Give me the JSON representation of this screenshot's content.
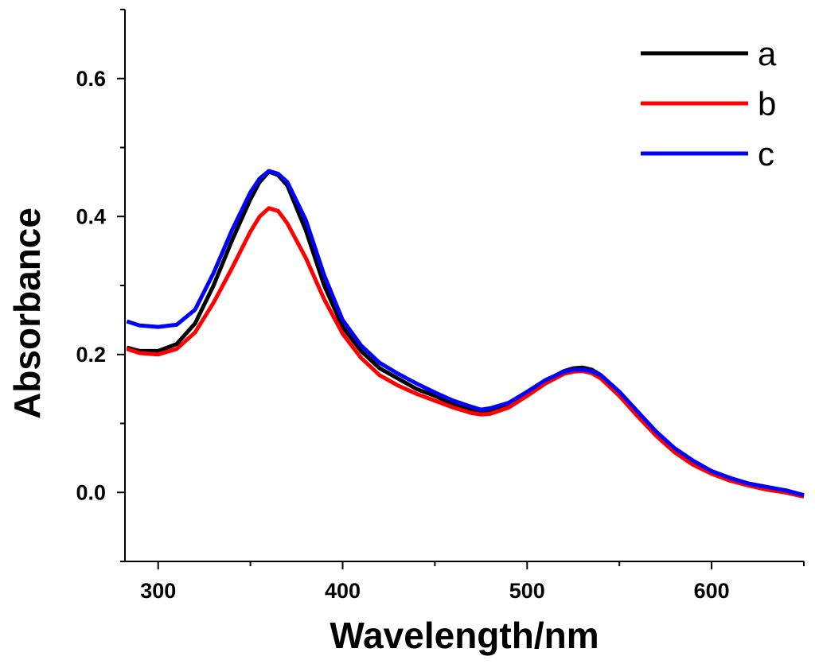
{
  "chart_data": {
    "type": "line",
    "title": "",
    "xlabel": "Wavelength/nm",
    "ylabel": "Absorbance",
    "xlim": [
      282,
      650
    ],
    "ylim": [
      -0.1,
      0.7
    ],
    "xticks": [
      300,
      400,
      500,
      600
    ],
    "xtick_labels": [
      "300",
      "400",
      "500",
      "600"
    ],
    "yticks": [
      0.0,
      0.2,
      0.4,
      0.6
    ],
    "ytick_labels": [
      "0.0",
      "0.2",
      "0.4",
      "0.6"
    ],
    "grid": false,
    "legend_position": "top-right",
    "x": [
      283,
      290,
      300,
      310,
      320,
      330,
      340,
      350,
      355,
      360,
      365,
      370,
      380,
      390,
      400,
      410,
      420,
      430,
      440,
      450,
      460,
      470,
      475,
      480,
      490,
      500,
      510,
      520,
      525,
      530,
      535,
      540,
      550,
      560,
      570,
      580,
      590,
      600,
      610,
      620,
      630,
      640,
      650
    ],
    "series": [
      {
        "name": "a",
        "color": "#000000",
        "values": [
          0.21,
          0.205,
          0.205,
          0.215,
          0.245,
          0.3,
          0.365,
          0.425,
          0.45,
          0.465,
          0.46,
          0.445,
          0.38,
          0.3,
          0.24,
          0.205,
          0.18,
          0.165,
          0.15,
          0.14,
          0.128,
          0.12,
          0.118,
          0.119,
          0.128,
          0.145,
          0.162,
          0.176,
          0.18,
          0.181,
          0.178,
          0.17,
          0.145,
          0.115,
          0.085,
          0.062,
          0.045,
          0.03,
          0.02,
          0.012,
          0.007,
          0.003,
          -0.004
        ]
      },
      {
        "name": "b",
        "color": "#ff0000",
        "values": [
          0.208,
          0.202,
          0.2,
          0.208,
          0.232,
          0.275,
          0.325,
          0.378,
          0.4,
          0.412,
          0.408,
          0.39,
          0.34,
          0.28,
          0.23,
          0.195,
          0.17,
          0.155,
          0.143,
          0.133,
          0.123,
          0.115,
          0.113,
          0.114,
          0.123,
          0.14,
          0.158,
          0.172,
          0.175,
          0.176,
          0.173,
          0.165,
          0.14,
          0.11,
          0.082,
          0.058,
          0.04,
          0.027,
          0.017,
          0.01,
          0.004,
          0.0,
          -0.006
        ]
      },
      {
        "name": "c",
        "color": "#0000ff",
        "values": [
          0.248,
          0.242,
          0.24,
          0.243,
          0.265,
          0.318,
          0.38,
          0.435,
          0.455,
          0.466,
          0.462,
          0.45,
          0.395,
          0.315,
          0.25,
          0.213,
          0.188,
          0.172,
          0.158,
          0.145,
          0.133,
          0.124,
          0.12,
          0.122,
          0.13,
          0.146,
          0.163,
          0.175,
          0.178,
          0.178,
          0.176,
          0.17,
          0.146,
          0.117,
          0.088,
          0.064,
          0.046,
          0.031,
          0.021,
          0.013,
          0.008,
          0.003,
          -0.004
        ]
      }
    ]
  }
}
